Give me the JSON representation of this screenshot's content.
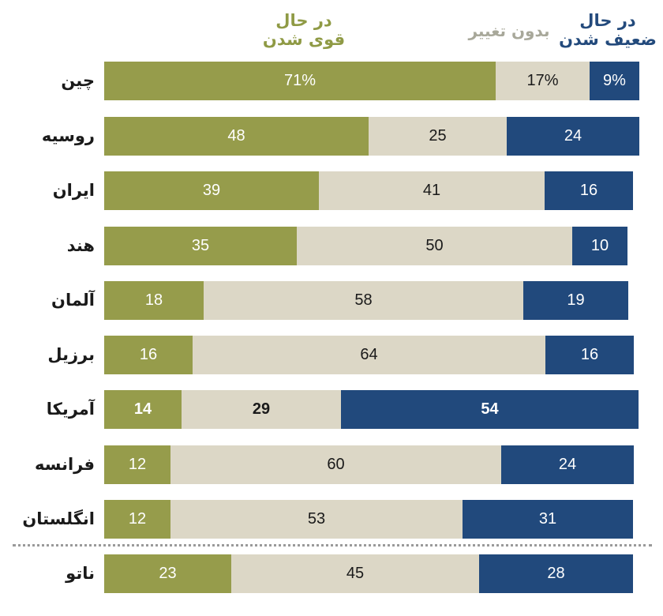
{
  "legend": {
    "strengthening": "در حال قوی شدن",
    "strengthening_line1": "در حال",
    "strengthening_line2": "قوی شدن",
    "no_change": "بدون تغییر",
    "weakening_line1": "در حال",
    "weakening_line2": "ضعیف شدن"
  },
  "colors": {
    "strengthening": "#969c4b",
    "no_change": "#dcd7c6",
    "weakening": "#21497c"
  },
  "rows": [
    {
      "label": "چین",
      "strong": "71%",
      "same": "17%",
      "weak": "9%"
    },
    {
      "label": "روسیه",
      "strong": "48",
      "same": "25",
      "weak": "24"
    },
    {
      "label": "ایران",
      "strong": "39",
      "same": "41",
      "weak": "16"
    },
    {
      "label": "هند",
      "strong": "35",
      "same": "50",
      "weak": "10"
    },
    {
      "label": "آلمان",
      "strong": "18",
      "same": "58",
      "weak": "19"
    },
    {
      "label": "برزیل",
      "strong": "16",
      "same": "64",
      "weak": "16"
    },
    {
      "label": "آمریکا",
      "strong": "14",
      "same": "29",
      "weak": "54"
    },
    {
      "label": "فرانسه",
      "strong": "12",
      "same": "60",
      "weak": "24"
    },
    {
      "label": "انگلستان",
      "strong": "12",
      "same": "53",
      "weak": "31"
    },
    {
      "label": "ناتو",
      "strong": "23",
      "same": "45",
      "weak": "28"
    }
  ],
  "chart_data": {
    "type": "bar",
    "orientation": "horizontal",
    "stacked": true,
    "title": "",
    "xlabel": "",
    "ylabel": "",
    "unit": "%",
    "categories": [
      "چین",
      "روسیه",
      "ایران",
      "هند",
      "آلمان",
      "برزیل",
      "آمریکا",
      "فرانسه",
      "انگلستان",
      "ناتو"
    ],
    "series": [
      {
        "name": "در حال قوی شدن",
        "color": "#969c4b",
        "values": [
          71,
          48,
          39,
          35,
          18,
          16,
          14,
          12,
          12,
          23
        ]
      },
      {
        "name": "بدون تغییر",
        "color": "#dcd7c6",
        "values": [
          17,
          25,
          41,
          50,
          58,
          64,
          29,
          60,
          53,
          45
        ]
      },
      {
        "name": "در حال ضعیف شدن",
        "color": "#21497c",
        "values": [
          9,
          24,
          16,
          10,
          19,
          16,
          54,
          24,
          31,
          28
        ]
      }
    ],
    "highlighted_category": "آمریکا",
    "separator_before": "ناتو",
    "legend_position": "top",
    "grid": false
  }
}
